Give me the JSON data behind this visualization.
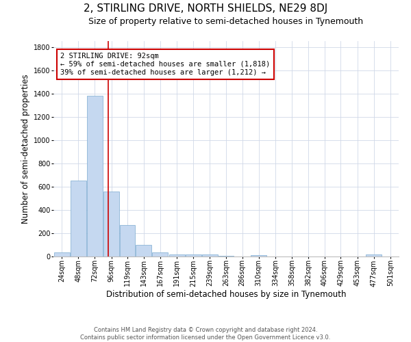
{
  "title": "2, STIRLING DRIVE, NORTH SHIELDS, NE29 8DJ",
  "subtitle": "Size of property relative to semi-detached houses in Tynemouth",
  "xlabel": "Distribution of semi-detached houses by size in Tynemouth",
  "ylabel": "Number of semi-detached properties",
  "bar_color": "#c5d8f0",
  "bar_edge_color": "#7aaad0",
  "grid_color": "#d0d8e8",
  "background_color": "#ffffff",
  "property_line_x": 92,
  "property_line_color": "#cc0000",
  "annotation_text": "2 STIRLING DRIVE: 92sqm\n← 59% of semi-detached houses are smaller (1,818)\n39% of semi-detached houses are larger (1,212) →",
  "annotation_box_color": "#ffffff",
  "annotation_box_edge_color": "#cc0000",
  "bin_edges": [
    12,
    36,
    60,
    84,
    108,
    131,
    155,
    179,
    203,
    227,
    251,
    274,
    298,
    322,
    346,
    370,
    394,
    417,
    441,
    465,
    489,
    513
  ],
  "bin_labels": [
    "24sqm",
    "48sqm",
    "72sqm",
    "96sqm",
    "119sqm",
    "143sqm",
    "167sqm",
    "191sqm",
    "215sqm",
    "239sqm",
    "263sqm",
    "286sqm",
    "310sqm",
    "334sqm",
    "358sqm",
    "382sqm",
    "406sqm",
    "429sqm",
    "453sqm",
    "477sqm",
    "501sqm"
  ],
  "bar_heights": [
    35,
    650,
    1380,
    560,
    270,
    100,
    35,
    20,
    18,
    15,
    8,
    2,
    10,
    2,
    2,
    2,
    2,
    2,
    2,
    15,
    2
  ],
  "ylim": [
    0,
    1850
  ],
  "yticks": [
    0,
    200,
    400,
    600,
    800,
    1000,
    1200,
    1400,
    1600,
    1800
  ],
  "footer_text": "Contains HM Land Registry data © Crown copyright and database right 2024.\nContains public sector information licensed under the Open Government Licence v3.0.",
  "title_fontsize": 11,
  "subtitle_fontsize": 9,
  "label_fontsize": 8.5,
  "tick_fontsize": 7,
  "footer_fontsize": 6,
  "annotation_fontsize": 7.5
}
